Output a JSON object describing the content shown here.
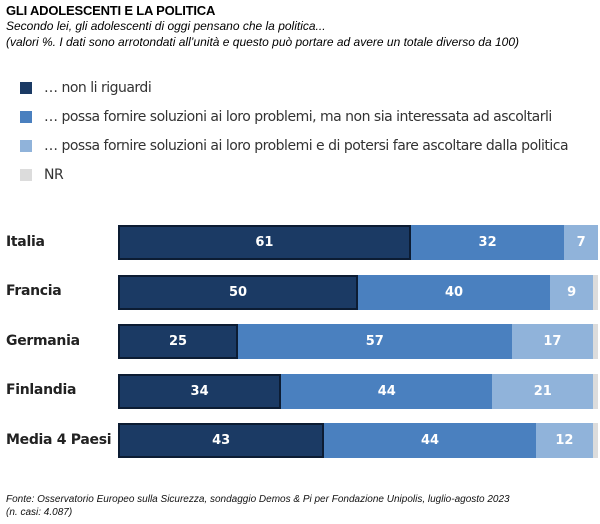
{
  "header": {
    "title": "GLI ADOLESCENTI E LA POLITICA",
    "subtitle": "Secondo lei, gli adolescenti di oggi pensano che la politica...",
    "note": "(valori %. I dati sono arrotondati all’unità e questo può portare ad avere un totale diverso da 100)"
  },
  "footer": {
    "source": "Fonte: Osservatorio Europeo sulla Sicurezza, sondaggio Demos & Pi per Fondazione Unipolis, luglio-agosto 2023",
    "cases": "(n. casi: 4.087)"
  },
  "colors": {
    "non_li_riguardi": "#1b3a64",
    "non_interessata": "#4a80bf",
    "potersi_ascoltare": "#90b3da",
    "nr": "#dcdcdc"
  },
  "chart_data": {
    "type": "bar",
    "orientation": "horizontal",
    "stacked": true,
    "title": "GLI ADOLESCENTI E LA POLITICA",
    "subtitle": "Secondo lei, gli adolescenti di oggi pensano che la politica...",
    "xlabel": "",
    "ylabel": "",
    "xlim": [
      0,
      100
    ],
    "unit": "%",
    "grid": false,
    "legend_position": "top-left",
    "categories": [
      "Italia",
      "Francia",
      "Germania",
      "Finlandia",
      "Media 4 Paesi"
    ],
    "series": [
      {
        "name": "… non li riguardi",
        "color": "#1b3a64",
        "values": [
          61,
          50,
          25,
          34,
          43
        ],
        "labeled": true
      },
      {
        "name": "… possa fornire soluzioni ai loro problemi, ma non sia interessata ad ascoltarli",
        "color": "#4a80bf",
        "values": [
          32,
          40,
          57,
          44,
          44
        ],
        "labeled": true
      },
      {
        "name": "… possa fornire soluzioni ai loro problemi e di potersi fare ascoltare dalla politica",
        "color": "#90b3da",
        "values": [
          7,
          9,
          17,
          21,
          12
        ],
        "labeled": true
      },
      {
        "name": "NR",
        "color": "#dcdcdc",
        "values": [
          0,
          1,
          1,
          1,
          1
        ],
        "labeled": false
      }
    ]
  }
}
